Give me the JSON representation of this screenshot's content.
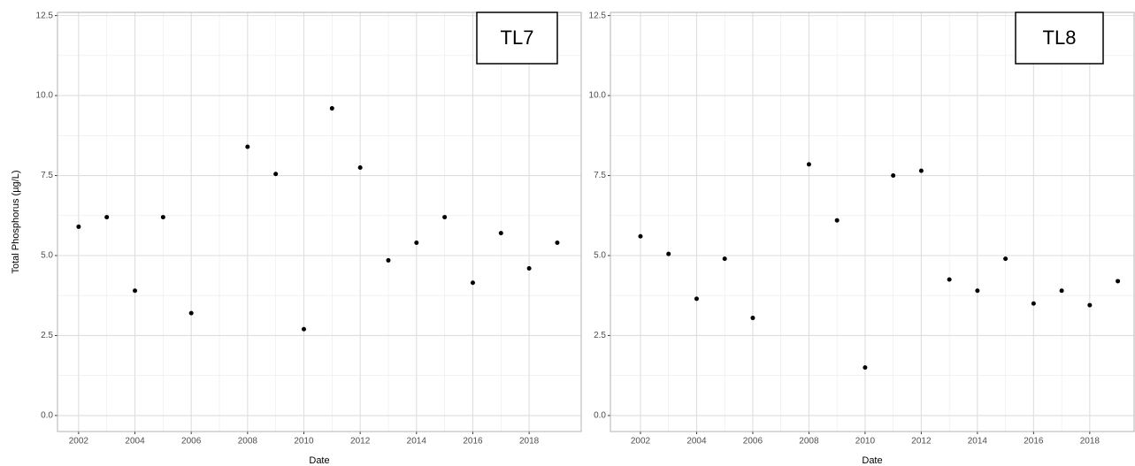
{
  "chart_data": [
    {
      "type": "scatter",
      "annotation": "TL7",
      "y_label": "Total Phosphorus (µg/L)",
      "x_label": "Date",
      "color": "#000000",
      "grid": true,
      "x": [
        2002,
        2003,
        2004,
        2005,
        2006,
        2008,
        2009,
        2010,
        2011,
        2012,
        2013,
        2014,
        2015,
        2016,
        2017,
        2018,
        2019
      ],
      "values": [
        5.9,
        6.2,
        3.9,
        6.2,
        3.2,
        8.4,
        7.55,
        2.7,
        9.6,
        7.75,
        4.85,
        5.4,
        6.2,
        4.15,
        5.7,
        4.6,
        5.4
      ],
      "xlim": [
        2001.25,
        2019.85
      ],
      "xticks": [
        2002,
        2004,
        2006,
        2008,
        2010,
        2012,
        2014,
        2016,
        2018
      ],
      "ylim": [
        -0.5,
        12.6
      ],
      "yticks": [
        {
          "value": 0,
          "label": "0.0"
        },
        2.5,
        {
          "value": 5,
          "label": "5.0"
        },
        7.5,
        {
          "value": 10,
          "label": "10.0"
        },
        12.5
      ]
    },
    {
      "type": "scatter",
      "annotation": "TL8",
      "x_label": "Date",
      "color": "#000000",
      "grid": true,
      "x": [
        2002,
        2003,
        2004,
        2005,
        2006,
        2008,
        2009,
        2010,
        2011,
        2012,
        2013,
        2014,
        2015,
        2016,
        2017,
        2018,
        2019
      ],
      "values": [
        5.6,
        5.05,
        3.65,
        4.9,
        3.05,
        7.85,
        6.1,
        1.5,
        7.5,
        7.65,
        4.25,
        3.9,
        4.9,
        3.5,
        3.9,
        3.45,
        4.2
      ],
      "xlim": [
        2000.93,
        2019.58
      ],
      "xticks": [
        2002,
        2004,
        2006,
        2008,
        2010,
        2012,
        2014,
        2016,
        2018
      ],
      "ylim": [
        -0.5,
        12.6
      ],
      "yticks": [
        {
          "value": 0,
          "label": "0.0"
        },
        2.5,
        {
          "value": 5,
          "label": "5.0"
        },
        7.5,
        {
          "value": 10,
          "label": "10.0"
        },
        12.5
      ]
    }
  ]
}
